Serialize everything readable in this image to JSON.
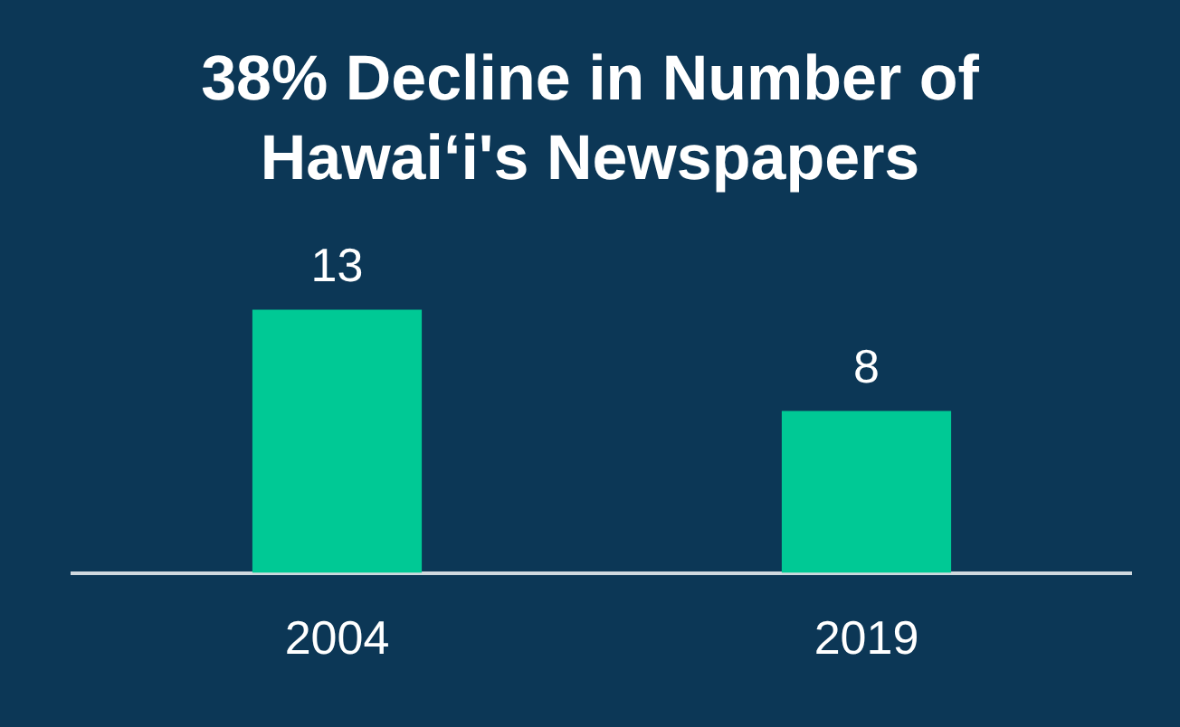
{
  "chart_data": {
    "type": "bar",
    "title": "38% Decline in Number of Hawai‘i's Newspapers",
    "categories": [
      "2004",
      "2019"
    ],
    "values": [
      13,
      8
    ],
    "color": "#00c995",
    "data_labels": true
  }
}
